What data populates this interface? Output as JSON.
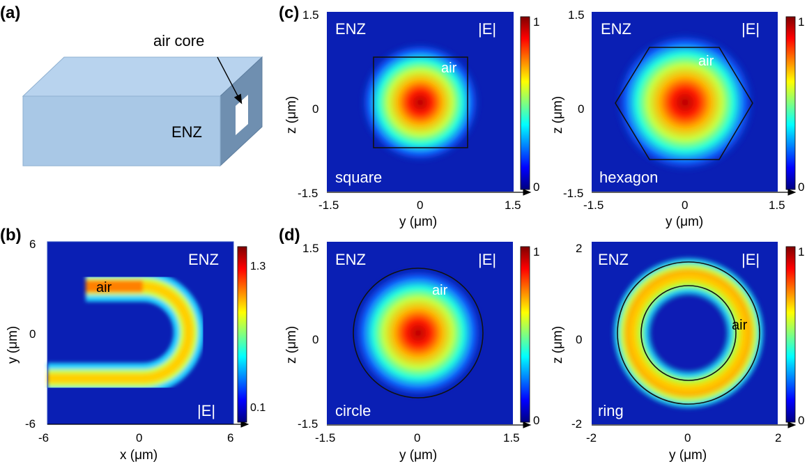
{
  "figure": {
    "panel_a": {
      "label": "(a)",
      "annotation": "air core",
      "material": "ENZ",
      "colors": {
        "front": "#a9c8e6",
        "top": "#b8d3ee",
        "side": "#6f8fb0",
        "core": "#ffffff"
      }
    },
    "panel_b": {
      "label": "(b)",
      "material": "ENZ",
      "field": "|E|",
      "core": "air",
      "xlabel": "x (μm)",
      "ylabel": "y (μm)",
      "xticks": [
        "-6",
        "0",
        "6"
      ],
      "yticks": [
        "6",
        "0",
        "-6"
      ],
      "colorbar_ticks": [
        "1.3",
        "0.1"
      ],
      "colorbar_range": [
        0.1,
        1.3
      ]
    },
    "panel_c": {
      "label": "(c)",
      "plots": [
        {
          "shape": "square",
          "material": "ENZ",
          "field": "|E|",
          "core": "air",
          "xlabel": "y (μm)",
          "ylabel": "z (μm)",
          "xticks": [
            "-1.5",
            "0",
            "1.5"
          ],
          "yticks": [
            "1.5",
            "0",
            "-1.5"
          ],
          "colorbar_ticks": [
            "1",
            "0"
          ]
        },
        {
          "shape": "hexagon",
          "material": "ENZ",
          "field": "|E|",
          "core": "air",
          "xlabel": "y (μm)",
          "ylabel": "z (μm)",
          "xticks": [
            "-1.5",
            "0",
            "1.5"
          ],
          "yticks": [
            "1.5",
            "0",
            "-1.5"
          ],
          "colorbar_ticks": [
            "1",
            "0"
          ]
        }
      ]
    },
    "panel_d": {
      "label": "(d)",
      "plots": [
        {
          "shape": "circle",
          "material": "ENZ",
          "field": "|E|",
          "core": "air",
          "xlabel": "y (μm)",
          "ylabel": "z (μm)",
          "xticks": [
            "-1.5",
            "0",
            "1.5"
          ],
          "yticks": [
            "1.5",
            "0",
            "-1.5"
          ],
          "colorbar_ticks": [
            "1",
            "0"
          ]
        },
        {
          "shape": "ring",
          "material": "ENZ",
          "field": "|E|",
          "core": "air",
          "xlabel": "y (μm)",
          "ylabel": "z (μm)",
          "xticks": [
            "-2",
            "0",
            "2"
          ],
          "yticks": [
            "2",
            "0",
            "-2"
          ],
          "colorbar_ticks": [
            "1",
            "0"
          ]
        }
      ]
    },
    "colormap": "jet",
    "background_color": "#0a1fb4"
  }
}
